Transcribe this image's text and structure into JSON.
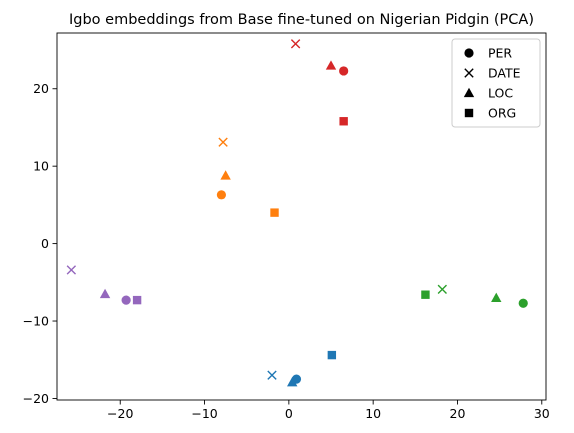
{
  "chart_data": {
    "type": "scatter",
    "title": "Igbo embeddings from Base fine-tuned on Nigerian Pidgin (PCA)",
    "xlabel": "",
    "ylabel": "",
    "xlim": [
      -27.5,
      30.5
    ],
    "ylim": [
      -20.2,
      27.2
    ],
    "xticks": [
      -20,
      -10,
      0,
      10,
      20,
      30
    ],
    "yticks": [
      -20,
      -10,
      0,
      10,
      20
    ],
    "grid": false,
    "legend_position": "top-right",
    "legend": [
      {
        "label": "PER",
        "marker": "circle"
      },
      {
        "label": "DATE",
        "marker": "x"
      },
      {
        "label": "LOC",
        "marker": "triangle"
      },
      {
        "label": "ORG",
        "marker": "square"
      }
    ],
    "colors": {
      "blue": "#1f77b4",
      "orange": "#ff7f0e",
      "green": "#2ca02c",
      "red": "#d62728",
      "purple": "#9467bd"
    },
    "points": [
      {
        "x": 6.5,
        "y": 22.3,
        "marker": "circle",
        "color": "#d62728"
      },
      {
        "x": 0.8,
        "y": 25.8,
        "marker": "x",
        "color": "#d62728"
      },
      {
        "x": 5.0,
        "y": 23.0,
        "marker": "triangle",
        "color": "#d62728"
      },
      {
        "x": 6.5,
        "y": 15.8,
        "marker": "square",
        "color": "#d62728"
      },
      {
        "x": -8.0,
        "y": 6.3,
        "marker": "circle",
        "color": "#ff7f0e"
      },
      {
        "x": -7.8,
        "y": 13.1,
        "marker": "x",
        "color": "#ff7f0e"
      },
      {
        "x": -7.5,
        "y": 8.8,
        "marker": "triangle",
        "color": "#ff7f0e"
      },
      {
        "x": -1.7,
        "y": 4.0,
        "marker": "square",
        "color": "#ff7f0e"
      },
      {
        "x": -19.3,
        "y": -7.3,
        "marker": "circle",
        "color": "#9467bd"
      },
      {
        "x": -25.8,
        "y": -3.4,
        "marker": "x",
        "color": "#9467bd"
      },
      {
        "x": -21.8,
        "y": -6.5,
        "marker": "triangle",
        "color": "#9467bd"
      },
      {
        "x": -18.0,
        "y": -7.3,
        "marker": "square",
        "color": "#9467bd"
      },
      {
        "x": 27.8,
        "y": -7.7,
        "marker": "circle",
        "color": "#2ca02c"
      },
      {
        "x": 18.2,
        "y": -5.9,
        "marker": "x",
        "color": "#2ca02c"
      },
      {
        "x": 24.6,
        "y": -7.0,
        "marker": "triangle",
        "color": "#2ca02c"
      },
      {
        "x": 16.2,
        "y": -6.6,
        "marker": "square",
        "color": "#2ca02c"
      },
      {
        "x": 0.9,
        "y": -17.5,
        "marker": "circle",
        "color": "#1f77b4"
      },
      {
        "x": -2.0,
        "y": -17.0,
        "marker": "x",
        "color": "#1f77b4"
      },
      {
        "x": 0.4,
        "y": -17.9,
        "marker": "triangle",
        "color": "#1f77b4"
      },
      {
        "x": 5.1,
        "y": -14.4,
        "marker": "square",
        "color": "#1f77b4"
      }
    ]
  }
}
